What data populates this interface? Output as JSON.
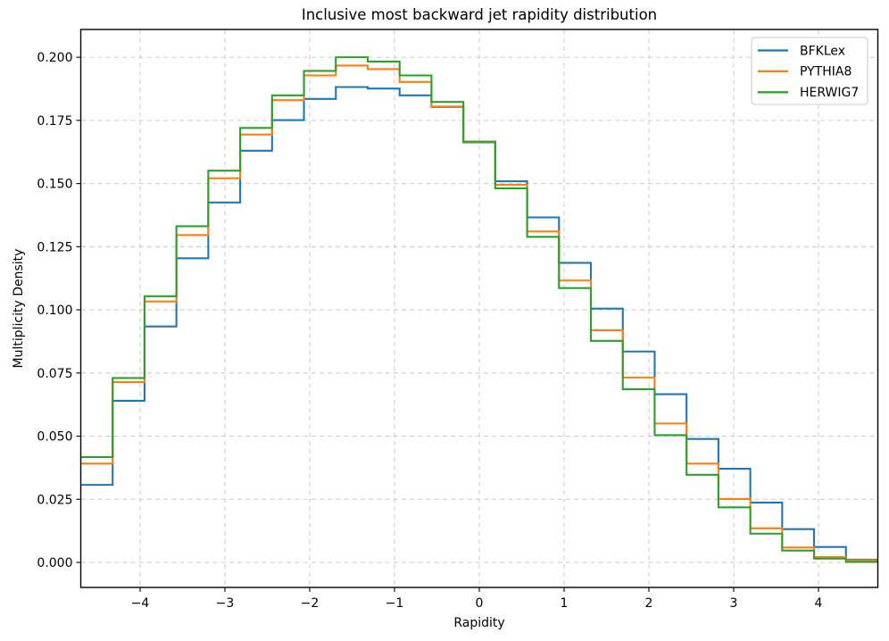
{
  "chart_data": {
    "type": "histogram",
    "title": "Inclusive most backward jet rapidity distribution",
    "xlabel": "Rapidity",
    "ylabel": "Multiplicity Density",
    "xlim": [
      -4.7,
      4.7
    ],
    "ylim": [
      -0.0099,
      0.211
    ],
    "x_ticks": [
      -4,
      -3,
      -2,
      -1,
      0,
      1,
      2,
      3,
      4
    ],
    "y_ticks": [
      0.0,
      0.025,
      0.05,
      0.075,
      0.1,
      0.125,
      0.15,
      0.175,
      0.2
    ],
    "grid": true,
    "grid_style": "dashed",
    "legend_position": "upper right",
    "bin_edges": [
      -4.7,
      -4.324,
      -3.948,
      -3.572,
      -3.196,
      -2.82,
      -2.444,
      -2.068,
      -1.692,
      -1.316,
      -0.94,
      -0.564,
      -0.188,
      0.188,
      0.564,
      0.94,
      1.316,
      1.692,
      2.068,
      2.444,
      2.82,
      3.196,
      3.572,
      3.948,
      4.324,
      4.7
    ],
    "series": [
      {
        "name": "BFKLex",
        "color": "#1f77b4",
        "values": [
          0.0307,
          0.064,
          0.0934,
          0.1204,
          0.1425,
          0.163,
          0.1751,
          0.1835,
          0.1882,
          0.1876,
          0.1849,
          0.1803,
          0.1663,
          0.1509,
          0.1366,
          0.1186,
          0.1005,
          0.0835,
          0.0666,
          0.0489,
          0.0371,
          0.0237,
          0.0132,
          0.0061,
          0.0011
        ]
      },
      {
        "name": "PYTHIA8",
        "color": "#ff7f0e",
        "values": [
          0.0391,
          0.0714,
          0.1033,
          0.1296,
          0.1521,
          0.1694,
          0.183,
          0.1928,
          0.1967,
          0.1953,
          0.1902,
          0.1805,
          0.1665,
          0.1495,
          0.131,
          0.1116,
          0.0919,
          0.0732,
          0.055,
          0.0391,
          0.0251,
          0.0135,
          0.0059,
          0.0021,
          0.0008
        ]
      },
      {
        "name": "HERWIG7",
        "color": "#2ca02c",
        "values": [
          0.0417,
          0.073,
          0.1054,
          0.1331,
          0.1551,
          0.172,
          0.1849,
          0.1946,
          0.2,
          0.1983,
          0.1928,
          0.1823,
          0.1666,
          0.1481,
          0.1289,
          0.1086,
          0.0877,
          0.0686,
          0.0504,
          0.0347,
          0.0218,
          0.0114,
          0.0047,
          0.0015,
          0.0002
        ]
      }
    ]
  }
}
